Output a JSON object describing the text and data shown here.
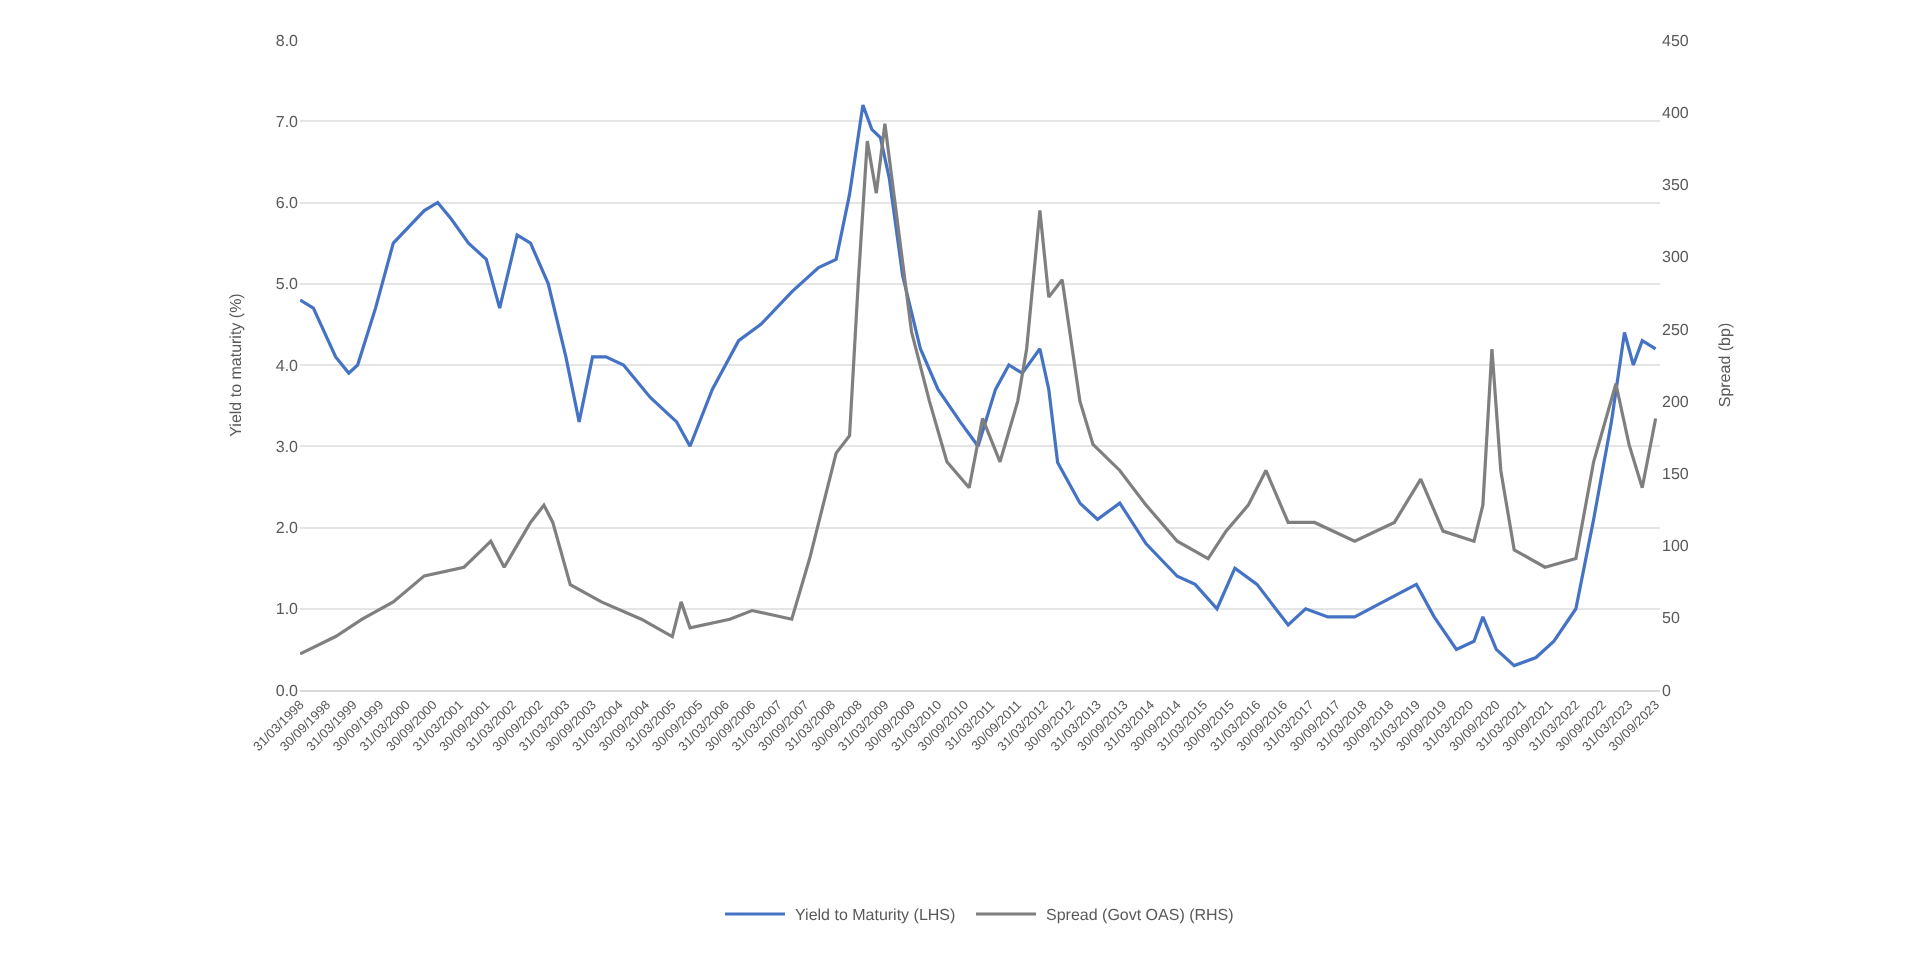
{
  "chart_data": {
    "type": "line",
    "xlabel": null,
    "ylabel": "Yield to maturity (%)",
    "y2label": "Spread (bp)",
    "series": [
      {
        "name": "Yield to Maturity (LHS)",
        "color": "#4472c4",
        "axis": "y",
        "x": [
          "1998-04",
          "1998-07",
          "1998-12",
          "1999-03",
          "1999-05",
          "1999-09",
          "2000-01",
          "2000-08",
          "2000-11",
          "2001-02",
          "2001-06",
          "2001-10",
          "2002-01",
          "2002-05",
          "2002-08",
          "2002-12",
          "2003-04",
          "2003-07",
          "2003-10",
          "2004-01",
          "2004-05",
          "2004-11",
          "2005-05",
          "2005-08",
          "2006-01",
          "2006-07",
          "2006-12",
          "2007-07",
          "2008-01",
          "2008-05",
          "2008-08",
          "2008-11",
          "2009-01",
          "2009-03",
          "2009-05",
          "2009-08",
          "2009-12",
          "2010-04",
          "2010-09",
          "2011-01",
          "2011-05",
          "2011-08",
          "2011-11",
          "2012-03",
          "2012-05",
          "2012-07",
          "2012-12",
          "2013-04",
          "2013-09",
          "2014-03",
          "2014-10",
          "2015-02",
          "2015-07",
          "2015-11",
          "2016-04",
          "2016-11",
          "2017-03",
          "2017-08",
          "2018-02",
          "2018-09",
          "2019-04",
          "2019-08",
          "2020-01",
          "2020-05",
          "2020-07",
          "2020-10",
          "2021-02",
          "2021-07",
          "2021-11",
          "2022-04",
          "2022-08",
          "2022-12",
          "2023-03",
          "2023-05",
          "2023-07",
          "2023-10"
        ],
        "values": [
          4.8,
          4.7,
          4.1,
          3.9,
          4.0,
          4.7,
          5.5,
          5.9,
          6.0,
          5.8,
          5.5,
          5.3,
          4.7,
          5.6,
          5.5,
          5.0,
          4.1,
          3.3,
          4.1,
          4.1,
          4.0,
          3.6,
          3.3,
          3.0,
          3.7,
          4.3,
          4.5,
          4.9,
          5.2,
          5.3,
          6.1,
          7.2,
          6.9,
          6.8,
          6.3,
          5.1,
          4.2,
          3.7,
          3.3,
          3.0,
          3.7,
          4.0,
          3.9,
          4.2,
          3.7,
          2.8,
          2.3,
          2.1,
          2.3,
          1.8,
          1.4,
          1.3,
          1.0,
          1.5,
          1.3,
          0.8,
          1.0,
          0.9,
          0.9,
          1.1,
          1.3,
          0.9,
          0.5,
          0.6,
          0.9,
          0.5,
          0.3,
          0.4,
          0.6,
          1.0,
          2.1,
          3.3,
          4.4,
          4.0,
          4.3,
          4.2
        ]
      },
      {
        "name": "Spread (Govt OAS) (RHS)",
        "color": "#7f7f7f",
        "axis": "y2",
        "x": [
          "1998-04",
          "1998-12",
          "1999-06",
          "2000-01",
          "2000-08",
          "2001-05",
          "2001-09",
          "2001-11",
          "2002-02",
          "2002-08",
          "2002-11",
          "2003-01",
          "2003-05",
          "2003-12",
          "2004-09",
          "2005-04",
          "2005-06",
          "2005-08",
          "2006-05",
          "2006-10",
          "2007-07",
          "2007-11",
          "2008-05",
          "2008-08",
          "2008-10",
          "2008-12",
          "2009-02",
          "2009-04",
          "2009-06",
          "2009-10",
          "2010-02",
          "2010-06",
          "2010-11",
          "2011-02",
          "2011-06",
          "2011-10",
          "2011-12",
          "2012-03",
          "2012-05",
          "2012-08",
          "2012-12",
          "2013-03",
          "2013-09",
          "2014-03",
          "2014-10",
          "2015-05",
          "2015-09",
          "2016-02",
          "2016-06",
          "2016-11",
          "2017-05",
          "2018-02",
          "2018-11",
          "2019-05",
          "2019-10",
          "2020-05",
          "2020-07",
          "2020-09",
          "2020-11",
          "2021-02",
          "2021-09",
          "2022-04",
          "2022-08",
          "2023-01",
          "2023-04",
          "2023-07",
          "2023-10"
        ],
        "values": [
          25,
          37,
          49,
          61,
          79,
          85,
          97,
          103,
          85,
          116,
          128,
          116,
          73,
          61,
          49,
          37,
          61,
          43,
          49,
          55,
          49,
          91,
          164,
          176,
          284,
          380,
          344,
          392,
          344,
          248,
          200,
          158,
          140,
          188,
          158,
          200,
          236,
          332,
          272,
          284,
          200,
          170,
          152,
          128,
          103,
          91,
          110,
          128,
          152,
          116,
          116,
          103,
          116,
          146,
          110,
          103,
          128,
          236,
          152,
          97,
          85,
          91,
          158,
          212,
          170,
          140,
          188
        ]
      }
    ],
    "xlim": [
      "1998-03-31",
      "2023-10-31"
    ],
    "xticks": [
      {
        "value": "1998-03-31",
        "label": "31/03/1998"
      },
      {
        "value": "1998-09-30",
        "label": "30/09/1998"
      },
      {
        "value": "1999-03-31",
        "label": "31/03/1999"
      },
      {
        "value": "1999-09-30",
        "label": "30/09/1999"
      },
      {
        "value": "2000-03-31",
        "label": "31/03/2000"
      },
      {
        "value": "2000-09-30",
        "label": "30/09/2000"
      },
      {
        "value": "2001-03-31",
        "label": "31/03/2001"
      },
      {
        "value": "2001-09-30",
        "label": "30/09/2001"
      },
      {
        "value": "2002-03-31",
        "label": "31/03/2002"
      },
      {
        "value": "2002-09-30",
        "label": "30/09/2002"
      },
      {
        "value": "2003-03-31",
        "label": "31/03/2003"
      },
      {
        "value": "2003-09-30",
        "label": "30/09/2003"
      },
      {
        "value": "2004-03-31",
        "label": "31/03/2004"
      },
      {
        "value": "2004-09-30",
        "label": "30/09/2004"
      },
      {
        "value": "2005-03-31",
        "label": "31/03/2005"
      },
      {
        "value": "2005-09-30",
        "label": "30/09/2005"
      },
      {
        "value": "2006-03-31",
        "label": "31/03/2006"
      },
      {
        "value": "2006-09-30",
        "label": "30/09/2006"
      },
      {
        "value": "2007-03-31",
        "label": "31/03/2007"
      },
      {
        "value": "2007-09-30",
        "label": "30/09/2007"
      },
      {
        "value": "2008-03-31",
        "label": "31/03/2008"
      },
      {
        "value": "2008-09-30",
        "label": "30/09/2008"
      },
      {
        "value": "2009-03-31",
        "label": "31/03/2009"
      },
      {
        "value": "2009-09-30",
        "label": "30/09/2009"
      },
      {
        "value": "2010-03-31",
        "label": "31/03/2010"
      },
      {
        "value": "2010-09-30",
        "label": "30/09/2010"
      },
      {
        "value": "2011-03-31",
        "label": "31/03/2011"
      },
      {
        "value": "2011-09-30",
        "label": "30/09/2011"
      },
      {
        "value": "2012-03-31",
        "label": "31/03/2012"
      },
      {
        "value": "2012-09-30",
        "label": "30/09/2012"
      },
      {
        "value": "2013-03-31",
        "label": "31/03/2013"
      },
      {
        "value": "2013-09-30",
        "label": "30/09/2013"
      },
      {
        "value": "2014-03-31",
        "label": "31/03/2014"
      },
      {
        "value": "2014-09-30",
        "label": "30/09/2014"
      },
      {
        "value": "2015-03-31",
        "label": "31/03/2015"
      },
      {
        "value": "2015-09-30",
        "label": "30/09/2015"
      },
      {
        "value": "2016-03-31",
        "label": "31/03/2016"
      },
      {
        "value": "2016-09-30",
        "label": "30/09/2016"
      },
      {
        "value": "2017-03-31",
        "label": "31/03/2017"
      },
      {
        "value": "2017-09-30",
        "label": "30/09/2017"
      },
      {
        "value": "2018-03-31",
        "label": "31/03/2018"
      },
      {
        "value": "2018-09-30",
        "label": "30/09/2018"
      },
      {
        "value": "2019-03-31",
        "label": "31/03/2019"
      },
      {
        "value": "2019-09-30",
        "label": "30/09/2019"
      },
      {
        "value": "2020-03-31",
        "label": "31/03/2020"
      },
      {
        "value": "2020-09-30",
        "label": "30/09/2020"
      },
      {
        "value": "2021-03-31",
        "label": "31/03/2021"
      },
      {
        "value": "2021-09-30",
        "label": "30/09/2021"
      },
      {
        "value": "2022-03-31",
        "label": "31/03/2022"
      },
      {
        "value": "2022-09-30",
        "label": "30/09/2022"
      },
      {
        "value": "2023-03-31",
        "label": "31/03/2023"
      },
      {
        "value": "2023-09-30",
        "label": "30/09/2023"
      }
    ],
    "ylim": [
      0,
      8
    ],
    "yticks": [
      {
        "value": 0,
        "label": "0.0"
      },
      {
        "value": 1,
        "label": "1.0"
      },
      {
        "value": 2,
        "label": "2.0"
      },
      {
        "value": 3,
        "label": "3.0"
      },
      {
        "value": 4,
        "label": "4.0"
      },
      {
        "value": 5,
        "label": "5.0"
      },
      {
        "value": 6,
        "label": "6.0"
      },
      {
        "value": 7,
        "label": "7.0"
      },
      {
        "value": 8,
        "label": "8.0"
      }
    ],
    "y2lim": [
      0,
      450
    ],
    "y2ticks": [
      0,
      50,
      100,
      150,
      200,
      250,
      300,
      350,
      400,
      450
    ],
    "grid": "y",
    "legend": "bottom",
    "marker": "none",
    "line_style": "solid"
  }
}
